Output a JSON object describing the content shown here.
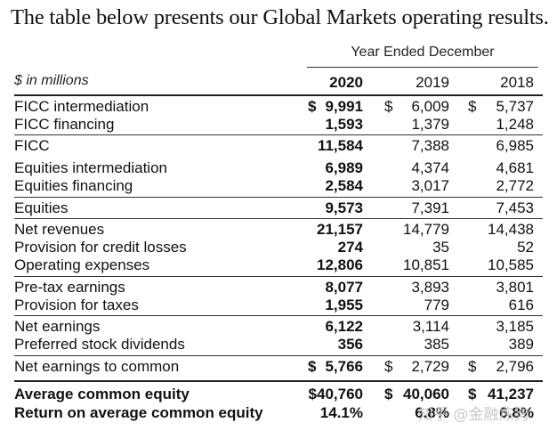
{
  "title": "The table below presents our Global Markets operating results.",
  "period_header": "Year Ended December",
  "unit_label": "$ in millions",
  "years": [
    "2020",
    "2019",
    "2018"
  ],
  "rows": [
    {
      "label": "FICC intermediation",
      "v2020": "9,991",
      "v2019": "6,009",
      "v2018": "5,737",
      "d2020": "$",
      "d2019": "$",
      "d2018": "$"
    },
    {
      "label": "FICC financing",
      "v2020": "1,593",
      "v2019": "1,379",
      "v2018": "1,248"
    },
    {
      "label": "FICC",
      "v2020": "11,584",
      "v2019": "7,388",
      "v2018": "6,985"
    },
    {
      "label": "Equities intermediation",
      "v2020": "6,989",
      "v2019": "4,374",
      "v2018": "4,681"
    },
    {
      "label": "Equities financing",
      "v2020": "2,584",
      "v2019": "3,017",
      "v2018": "2,772"
    },
    {
      "label": "Equities",
      "v2020": "9,573",
      "v2019": "7,391",
      "v2018": "7,453"
    },
    {
      "label": "Net revenues",
      "v2020": "21,157",
      "v2019": "14,779",
      "v2018": "14,438"
    },
    {
      "label": "Provision for credit losses",
      "v2020": "274",
      "v2019": "35",
      "v2018": "52"
    },
    {
      "label": "Operating expenses",
      "v2020": "12,806",
      "v2019": "10,851",
      "v2018": "10,585"
    },
    {
      "label": "Pre-tax earnings",
      "v2020": "8,077",
      "v2019": "3,893",
      "v2018": "3,801"
    },
    {
      "label": "Provision for taxes",
      "v2020": "1,955",
      "v2019": "779",
      "v2018": "616"
    },
    {
      "label": "Net earnings",
      "v2020": "6,122",
      "v2019": "3,114",
      "v2018": "3,185"
    },
    {
      "label": "Preferred stock dividends",
      "v2020": "356",
      "v2019": "385",
      "v2018": "389"
    },
    {
      "label": "Net earnings to common",
      "v2020": "5,766",
      "v2019": "2,729",
      "v2018": "2,796",
      "d2020": "$",
      "d2019": "$",
      "d2018": "$"
    },
    {
      "label": "Average common equity",
      "v2020": "$40,760",
      "v2019": "40,060",
      "v2018": "41,237",
      "d2019": "$",
      "d2018": "$"
    },
    {
      "label": "Return on average common equity",
      "v2020": "14.1%",
      "v2019": "6.8%",
      "v2018": "6.8%"
    }
  ],
  "watermark": "知乎 @金融炼狗"
}
